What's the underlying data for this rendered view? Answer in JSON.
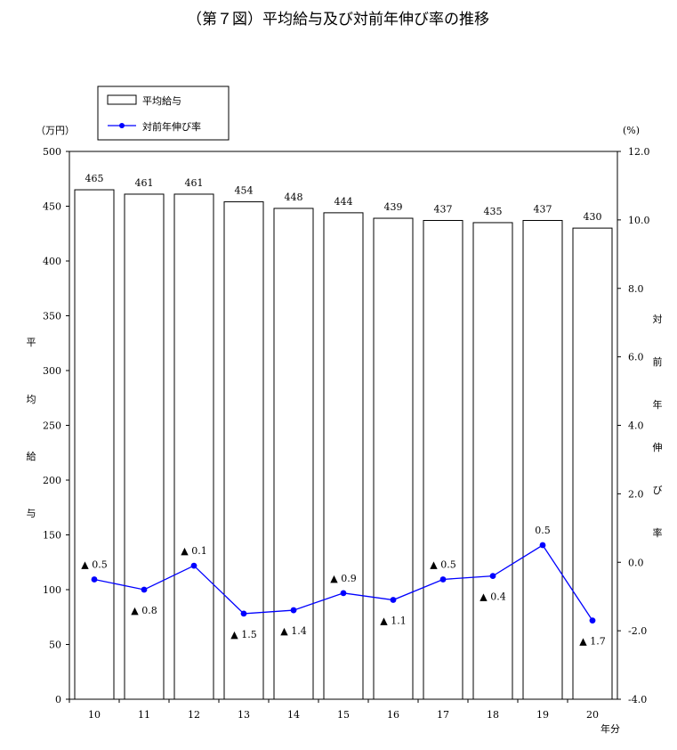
{
  "chart_data": {
    "type": "bar+line",
    "title": "（第７図）平均給与及び対前年伸び率の推移",
    "categories": [
      "10",
      "11",
      "12",
      "13",
      "14",
      "15",
      "16",
      "17",
      "18",
      "19",
      "20"
    ],
    "xunit": "年分",
    "left_axis": {
      "unit": "（万円）",
      "label_chars": [
        "平",
        "均",
        "給",
        "与"
      ],
      "ylim": [
        0,
        500
      ],
      "ticks": [
        "0",
        "50",
        "100",
        "150",
        "200",
        "250",
        "300",
        "350",
        "400",
        "450",
        "500"
      ]
    },
    "right_axis": {
      "unit": "(%)",
      "label_chars": [
        "対",
        "前",
        "年",
        "伸",
        "び",
        "率"
      ],
      "ylim": [
        -4.0,
        12.0
      ],
      "ticks": [
        "-4.0",
        "-2.0",
        "0.0",
        "2.0",
        "4.0",
        "6.0",
        "8.0",
        "10.0",
        "12.0"
      ]
    },
    "series": [
      {
        "name": "平均給与",
        "type": "bar",
        "axis": "left",
        "values": [
          465,
          461,
          461,
          454,
          448,
          444,
          439,
          437,
          435,
          437,
          430
        ],
        "labels": [
          "465",
          "461",
          "461",
          "454",
          "448",
          "444",
          "439",
          "437",
          "435",
          "437",
          "430"
        ]
      },
      {
        "name": "対前年伸び率",
        "type": "line",
        "axis": "right",
        "color": "#0000ff",
        "values": [
          -0.5,
          -0.8,
          -0.1,
          -1.5,
          -1.4,
          -0.9,
          -1.1,
          -0.5,
          -0.4,
          0.5,
          -1.7
        ],
        "labels": [
          "▲ 0.5",
          "▲ 0.8",
          "▲ 0.1",
          "▲ 1.5",
          "▲ 1.4",
          "▲ 0.9",
          "▲ 1.1",
          "▲ 0.5",
          "▲ 0.4",
          "0.5",
          "▲ 1.7"
        ],
        "label_pos": [
          "above",
          "below",
          "above",
          "below",
          "below",
          "above",
          "below",
          "above",
          "below",
          "above",
          "below"
        ]
      }
    ],
    "legend_position": "top-left",
    "grid": false
  }
}
